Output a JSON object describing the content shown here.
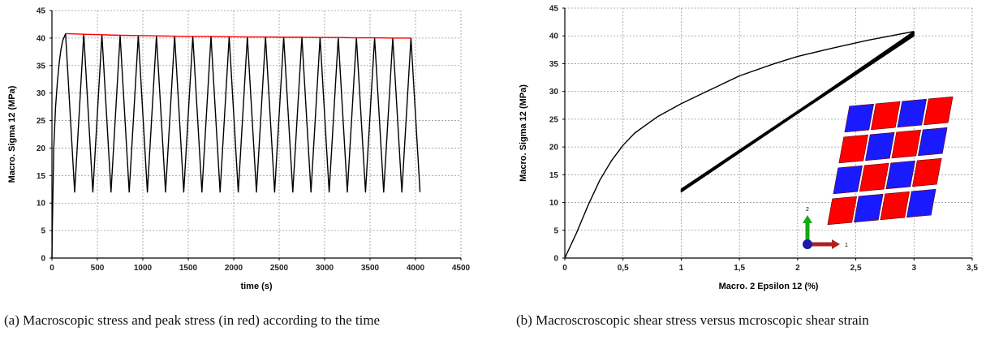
{
  "chart_data": [
    {
      "type": "line",
      "xlabel": "time (s)",
      "ylabel": "Macro. Sigma 12 (MPa)",
      "xlim": [
        0,
        4500
      ],
      "ylim": [
        0,
        45
      ],
      "xticks": [
        "0",
        "500",
        "1000",
        "1500",
        "2000",
        "2500",
        "3000",
        "3500",
        "4000",
        "4500"
      ],
      "yticks": [
        "0",
        "5",
        "10",
        "15",
        "20",
        "25",
        "30",
        "35",
        "40",
        "45"
      ],
      "grid": true,
      "series": [
        {
          "color": "#000000",
          "style": "solid",
          "x": [
            0,
            5,
            20,
            40,
            60,
            80,
            100,
            120,
            150,
            250,
            350,
            450,
            550,
            650,
            750,
            850,
            950,
            1050,
            1150,
            1250,
            1350,
            1450,
            1550,
            1650,
            1750,
            1850,
            1950,
            2050,
            2150,
            2250,
            2350,
            2450,
            2550,
            2650,
            2750,
            2850,
            2950,
            3050,
            3150,
            3250,
            3350,
            3450,
            3550,
            3650,
            3750,
            3850,
            3950,
            4050
          ],
          "y": [
            0,
            6,
            20,
            27.5,
            32,
            35.5,
            38,
            39.6,
            40.8,
            12,
            40.7,
            12,
            40.6,
            12,
            40.5,
            12,
            40.45,
            12,
            40.4,
            12,
            40.35,
            12,
            40.3,
            12,
            40.3,
            12,
            40.25,
            12,
            40.2,
            12,
            40.2,
            12,
            40.15,
            12,
            40.15,
            12,
            40.1,
            12,
            40.1,
            12,
            40.05,
            12,
            40.05,
            12,
            40.0,
            12,
            40.0,
            12
          ]
        },
        {
          "color": "#ff0000",
          "style": "solid",
          "x": [
            150,
            350,
            550,
            750,
            950,
            1150,
            1350,
            1550,
            1750,
            1950,
            2150,
            2350,
            2550,
            2750,
            2950,
            3150,
            3350,
            3550,
            3750,
            3950
          ],
          "y": [
            40.8,
            40.7,
            40.6,
            40.5,
            40.45,
            40.4,
            40.35,
            40.3,
            40.3,
            40.25,
            40.2,
            40.2,
            40.15,
            40.15,
            40.1,
            40.1,
            40.05,
            40.05,
            40.0,
            40.0
          ]
        }
      ],
      "caption": "(a) Macroscopic stress and peak stress (in red) according to the time"
    },
    {
      "type": "line",
      "xlabel": "Macro. 2 Epsilon 12 (%)",
      "ylabel": "Macro. Sigma 12 (MPa)",
      "xlim": [
        0,
        3.5
      ],
      "ylim": [
        0,
        45
      ],
      "xticks": [
        "0",
        "0,5",
        "1",
        "1,5",
        "2",
        "2,5",
        "3",
        "3,5"
      ],
      "yticks": [
        "0",
        "5",
        "10",
        "15",
        "20",
        "25",
        "30",
        "35",
        "40",
        "45"
      ],
      "grid": true,
      "series": [
        {
          "color": "#000000",
          "style": "solid",
          "x": [
            0,
            0.1,
            0.2,
            0.3,
            0.4,
            0.5,
            0.6,
            0.8,
            1.0,
            1.2,
            1.5,
            1.8,
            2.0,
            2.3,
            2.6,
            2.8,
            3.0
          ],
          "y": [
            0,
            4.5,
            9.5,
            14,
            17.5,
            20.3,
            22.5,
            25.5,
            27.8,
            29.8,
            32.8,
            35.0,
            36.3,
            37.8,
            39.2,
            40.0,
            40.8
          ]
        },
        {
          "color": "#000000",
          "style": "loop",
          "x": [
            3.0,
            1.0,
            3.0,
            1.0,
            3.0,
            1.0,
            3.0,
            1.0,
            3.0,
            1.0,
            3.0,
            1.0,
            3.0
          ],
          "y": [
            40.8,
            12.0,
            40.6,
            12.2,
            40.5,
            12.4,
            40.4,
            11.9,
            40.2,
            12.1,
            40.0,
            12.3,
            40.0
          ]
        }
      ],
      "inset": {
        "description_colors": {
          "red": "#ff0000",
          "blue": "#1a1aff",
          "green": "#18a818",
          "dark_red": "#b02020"
        },
        "axis_labels": [
          "2",
          "1"
        ]
      },
      "caption": "(b) Macroscroscopic shear stress versus mcroscopic shear strain"
    }
  ]
}
